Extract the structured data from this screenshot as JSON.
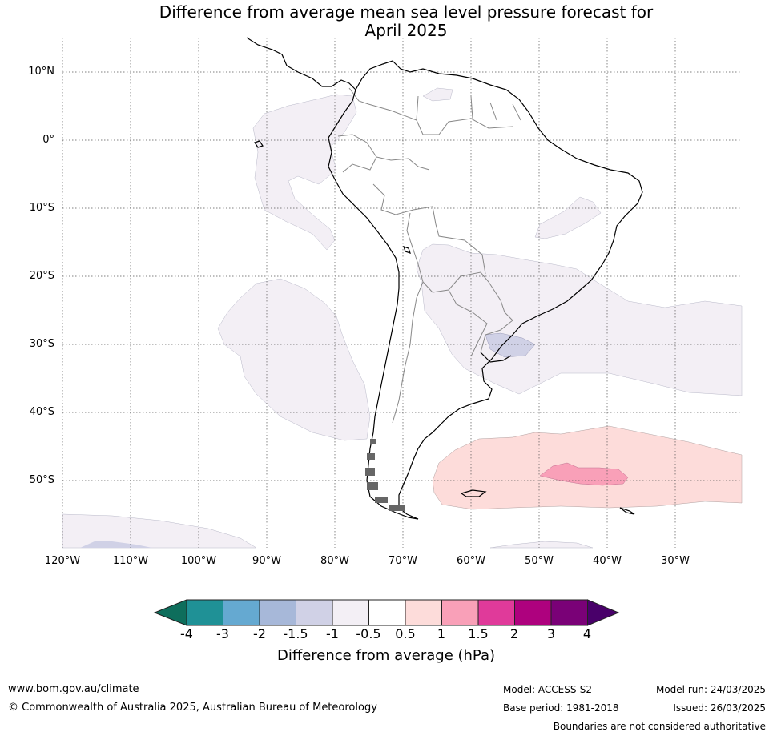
{
  "title_line1": "Difference from average mean sea level pressure forecast for",
  "title_line2": "April 2025",
  "lat_labels": [
    "10°N",
    "0°",
    "10°S",
    "20°S",
    "30°S",
    "40°S",
    "50°S"
  ],
  "lon_labels": [
    "120°W",
    "110°W",
    "100°W",
    "90°W",
    "80°W",
    "70°W",
    "60°W",
    "50°W",
    "40°W",
    "30°W"
  ],
  "colorbar": {
    "title": "Difference from average (hPa)",
    "tick_labels": [
      "-4",
      "-3",
      "-2",
      "-1.5",
      "-1",
      "-0.5",
      "0.5",
      "1",
      "1.5",
      "2",
      "3",
      "4"
    ],
    "colors": [
      "#0e6e5c",
      "#1f9196",
      "#65a9d1",
      "#a7b8d9",
      "#d0d1e6",
      "#f3eff5",
      "#ffffff",
      "#fddcda",
      "#f9a0b8",
      "#e03a9a",
      "#ae017e",
      "#7a0177",
      "#49006a"
    ]
  },
  "anomaly_regions": [
    {
      "name": "pacific-equatorial",
      "value_range": [
        -1,
        -0.5
      ],
      "color": "#f3eff5"
    },
    {
      "name": "brazil-atlantic",
      "value_range": [
        -1,
        -0.5
      ],
      "color": "#f3eff5"
    },
    {
      "name": "southeast-pacific",
      "value_range": [
        -1,
        -0.5
      ],
      "color": "#f3eff5"
    },
    {
      "name": "river-plate",
      "value_range": [
        -1.5,
        -1
      ],
      "color": "#d0d1e6"
    },
    {
      "name": "south-pacific-south",
      "value_range": [
        -1,
        -0.5
      ],
      "color": "#f3eff5"
    },
    {
      "name": "south-atlantic-high",
      "value_range": [
        0.5,
        1
      ],
      "color": "#fddcda"
    },
    {
      "name": "south-atlantic-core",
      "value_range": [
        1,
        1.5
      ],
      "color": "#f9a0b8"
    }
  ],
  "footer": {
    "website": "www.bom.gov.au/climate",
    "copyright": "© Commonwealth of Australia 2025, Australian Bureau of Meteorology",
    "model": "Model: ACCESS-S2",
    "base_period": "Base period: 1981-2018",
    "model_run": "Model run: 24/03/2025",
    "issued": "Issued: 26/03/2025",
    "disclaimer": "Boundaries are not considered authoritative"
  }
}
